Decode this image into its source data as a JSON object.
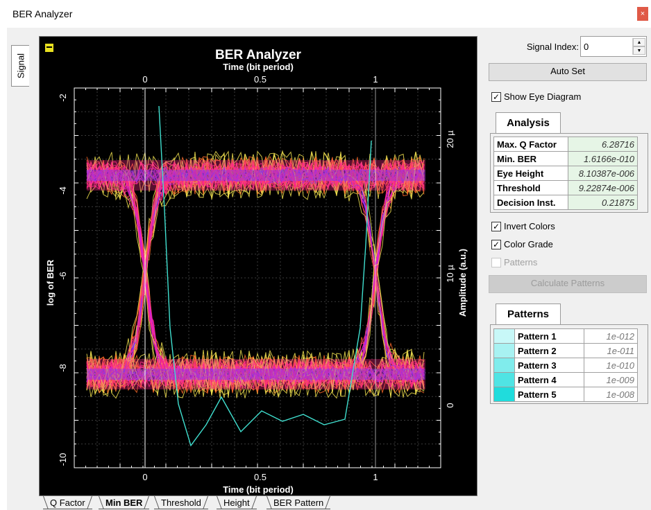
{
  "window": {
    "title": "BER Analyzer",
    "close_glyph": "×"
  },
  "left_tab": {
    "label": "Signal"
  },
  "plot": {
    "title": "BER Analyzer",
    "top_axis_label": "Time (bit period)",
    "bottom_axis_label": "Time (bit period)",
    "left_axis_label": "log of BER",
    "right_axis_label": "Amplitude (a.u.)",
    "x_ticks": [
      "0",
      "0.5",
      "1"
    ],
    "left_ticks": [
      "-2",
      "-4",
      "-6",
      "-8",
      "-10"
    ],
    "right_ticks": [
      "20 µ",
      "10 µ",
      "0"
    ],
    "colors": {
      "background": "#000000",
      "grid": "#3c3c3c",
      "band_outer": "#f0e050",
      "band_mid": "#ff6a2a",
      "band_core": "#ff2a88",
      "band_inner": "#d020e0",
      "band_center": "#6a3cff",
      "ber_curve": "#40e0d0",
      "frame_line": "#ffffff"
    }
  },
  "bottom_tabs": [
    "Q Factor",
    "Min BER",
    "Threshold",
    "Height",
    "BER Pattern"
  ],
  "active_bottom_tab": "Min BER",
  "controls": {
    "signal_index_label": "Signal Index:",
    "signal_index_value": "0",
    "auto_set_label": "Auto Set",
    "show_eye_label": "Show Eye Diagram",
    "show_eye_checked": true,
    "invert_colors_label": "Invert Colors",
    "invert_colors_checked": true,
    "color_grade_label": "Color Grade",
    "color_grade_checked": true,
    "patterns_label": "Patterns",
    "patterns_checked": false,
    "calculate_patterns_label": "Calculate Patterns"
  },
  "analysis": {
    "tab_label": "Analysis",
    "rows": [
      {
        "label": "Max. Q Factor",
        "value": "6.28716"
      },
      {
        "label": "Min. BER",
        "value": "1.6166e-010"
      },
      {
        "label": "Eye Height",
        "value": "8.10387e-006"
      },
      {
        "label": "Threshold",
        "value": "9.22874e-006"
      },
      {
        "label": "Decision Inst.",
        "value": "0.21875"
      }
    ]
  },
  "patterns": {
    "tab_label": "Patterns",
    "rows": [
      {
        "label": "Pattern 1",
        "value": "1e-012",
        "color": "#c8f8f8"
      },
      {
        "label": "Pattern 2",
        "value": "1e-011",
        "color": "#a8f2f2"
      },
      {
        "label": "Pattern 3",
        "value": "1e-010",
        "color": "#80ecec"
      },
      {
        "label": "Pattern 4",
        "value": "1e-009",
        "color": "#50e4e4"
      },
      {
        "label": "Pattern 5",
        "value": "1e-008",
        "color": "#20dcdc"
      }
    ]
  }
}
